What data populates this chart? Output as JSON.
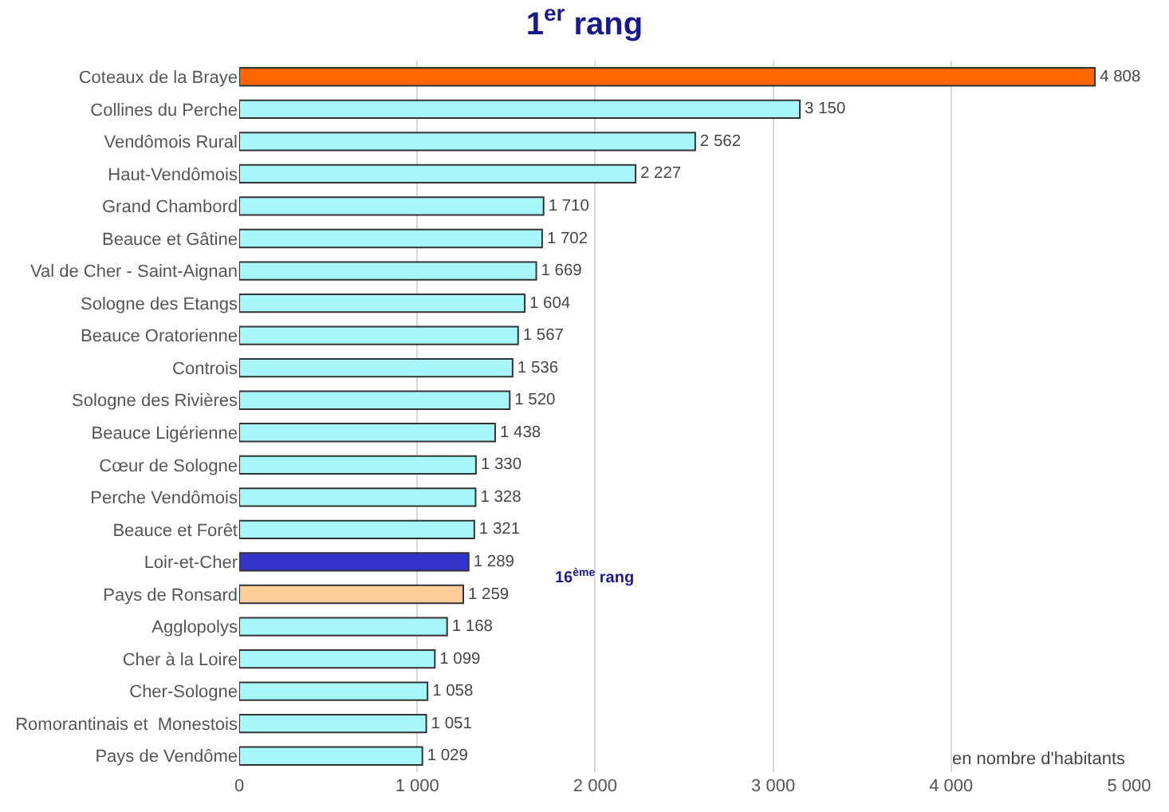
{
  "chart_data": {
    "type": "bar",
    "orientation": "horizontal",
    "title": "1$^{er}$ rang",
    "categories": [
      "Coteaux de la Braye",
      "Collines du Perche",
      "Vendômois Rural",
      "Haut-Vendômois",
      "Grand Chambord",
      "Beauce et Gâtine",
      "Val de Cher - Saint-Aignan",
      "Sologne des Etangs",
      "Beauce Oratorienne",
      "Controis",
      "Sologne des Rivières",
      "Beauce Ligérienne",
      "Cœur de Sologne",
      "Perche Vendômois",
      "Beauce et Forêt",
      "Loir-et-Cher",
      "Pays de Ronsard",
      "Agglopolys",
      "Cher à la Loire",
      "Cher-Sologne",
      "Romorantinais et  Monestois",
      "Pays de Vendôme"
    ],
    "values": [
      4808,
      3150,
      2562,
      2227,
      1710,
      1702,
      1669,
      1604,
      1567,
      1536,
      1520,
      1438,
      1330,
      1328,
      1321,
      1289,
      1259,
      1168,
      1099,
      1058,
      1051,
      1029
    ],
    "value_labels": [
      "4 808",
      "3 150",
      "2 562",
      "2 227",
      "1 710",
      "1 702",
      "1 669",
      "1 604",
      "1 567",
      "1 536",
      "1 520",
      "1 438",
      "1 330",
      "1 328",
      "1 321",
      "1 289",
      "1 259",
      "1 168",
      "1 099",
      "1 058",
      "1 051",
      "1 029"
    ],
    "colors": [
      "#ff6600",
      "#a6f6fa",
      "#a6f6fa",
      "#a6f6fa",
      "#a6f6fa",
      "#a6f6fa",
      "#a6f6fa",
      "#a6f6fa",
      "#a6f6fa",
      "#a6f6fa",
      "#a6f6fa",
      "#a6f6fa",
      "#a6f6fa",
      "#a6f6fa",
      "#a6f6fa",
      "#3333cc",
      "#ffcc99",
      "#a6f6fa",
      "#a6f6fa",
      "#a6f6fa",
      "#a6f6fa",
      "#a6f6fa"
    ],
    "xlim": [
      0,
      5000
    ],
    "xticks": [
      0,
      {
        "value": 1000,
        "label": "1 000"
      },
      {
        "value": 2000,
        "label": "2 000"
      },
      {
        "value": 3000,
        "label": "3 000"
      },
      {
        "value": 4000,
        "label": "4 000"
      },
      {
        "value": 5000,
        "label": "5 000"
      }
    ],
    "grid": "x",
    "legend": false,
    "annotations": [
      "16$^{ème}$ rang",
      "en nombre d'habitants"
    ]
  }
}
